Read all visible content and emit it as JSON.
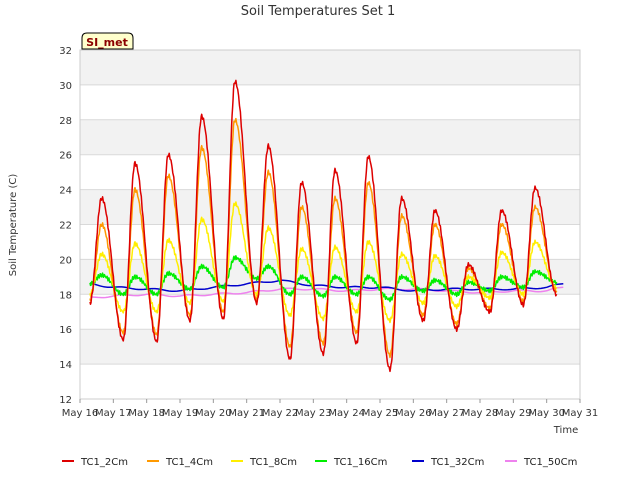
{
  "chart_data": {
    "type": "line",
    "title": "Soil Temperatures Set 1",
    "xlabel": "Time",
    "ylabel": "Soil Temperature (C)",
    "badge": "SI_met",
    "ylim": [
      12,
      32
    ],
    "yticks": [
      12,
      14,
      16,
      18,
      20,
      22,
      24,
      26,
      28,
      30,
      32
    ],
    "xlim": [
      16,
      31
    ],
    "xticks": [
      {
        "value": 16,
        "label": "May 16"
      },
      {
        "value": 17,
        "label": "May 17"
      },
      {
        "value": 18,
        "label": "May 18"
      },
      {
        "value": 19,
        "label": "May 19"
      },
      {
        "value": 20,
        "label": "May 20"
      },
      {
        "value": 21,
        "label": "May 21"
      },
      {
        "value": 22,
        "label": "May 22"
      },
      {
        "value": 23,
        "label": "May 23"
      },
      {
        "value": 24,
        "label": "May 24"
      },
      {
        "value": 25,
        "label": "May 25"
      },
      {
        "value": 26,
        "label": "May 26"
      },
      {
        "value": 27,
        "label": "May 27"
      },
      {
        "value": 28,
        "label": "May 28"
      },
      {
        "value": 29,
        "label": "May 29"
      },
      {
        "value": 30,
        "label": "May 30"
      },
      {
        "value": 31,
        "label": "May 31"
      }
    ],
    "grid": true,
    "legend_position": "bottom",
    "x_start": 16.3,
    "x_end": 30.5,
    "series": [
      {
        "name": "TC1_2Cm",
        "color": "#dd0000",
        "daily_min": [
          17.5,
          15.4,
          15.3,
          16.5,
          16.6,
          17.5,
          14.3,
          14.6,
          15.2,
          13.7,
          16.5,
          16.0,
          17.0,
          17.4,
          18.0
        ],
        "daily_max": [
          23.5,
          25.5,
          26.0,
          28.2,
          30.2,
          26.5,
          24.4,
          25.1,
          25.9,
          23.5,
          22.8,
          19.7,
          22.8,
          24.1
        ]
      },
      {
        "name": "TC1_4Cm",
        "color": "#ff9900",
        "daily_min": [
          17.7,
          15.8,
          15.7,
          16.8,
          17.0,
          17.7,
          15.0,
          15.2,
          15.8,
          14.5,
          16.8,
          16.3,
          17.2,
          17.6,
          18.2
        ],
        "daily_max": [
          22.0,
          24.0,
          24.8,
          26.4,
          28.0,
          25.0,
          23.0,
          23.5,
          24.4,
          22.5,
          22.0,
          19.5,
          22.0,
          23.0
        ]
      },
      {
        "name": "TC1_8Cm",
        "color": "#ffee00",
        "daily_min": [
          18.0,
          17.0,
          17.0,
          17.5,
          17.6,
          18.0,
          16.8,
          16.6,
          17.0,
          16.5,
          17.5,
          17.3,
          17.8,
          18.0,
          18.4
        ],
        "daily_max": [
          20.3,
          20.9,
          21.1,
          22.3,
          23.2,
          21.8,
          20.6,
          20.7,
          21.0,
          20.3,
          20.2,
          19.0,
          20.4,
          21.0
        ]
      },
      {
        "name": "TC1_16Cm",
        "color": "#00ee00",
        "daily_min": [
          18.6,
          18.0,
          18.0,
          18.3,
          18.4,
          18.9,
          18.0,
          17.9,
          18.0,
          17.7,
          18.2,
          18.0,
          18.2,
          18.4,
          18.7
        ],
        "daily_max": [
          19.1,
          19.0,
          19.2,
          19.6,
          20.1,
          19.6,
          19.0,
          19.0,
          19.0,
          19.0,
          18.8,
          18.7,
          19.0,
          19.3
        ]
      },
      {
        "name": "TC1_32Cm",
        "color": "#0000cc",
        "points": [
          [
            16.3,
            18.6
          ],
          [
            17.0,
            18.4
          ],
          [
            18.0,
            18.3
          ],
          [
            19.0,
            18.2
          ],
          [
            20.0,
            18.4
          ],
          [
            21.0,
            18.6
          ],
          [
            22.0,
            18.8
          ],
          [
            23.0,
            18.5
          ],
          [
            24.0,
            18.4
          ],
          [
            25.0,
            18.4
          ],
          [
            26.0,
            18.2
          ],
          [
            27.0,
            18.3
          ],
          [
            28.0,
            18.3
          ],
          [
            29.0,
            18.3
          ],
          [
            30.0,
            18.4
          ],
          [
            30.5,
            18.6
          ]
        ]
      },
      {
        "name": "TC1_50Cm",
        "color": "#ee82ee",
        "points": [
          [
            16.3,
            17.8
          ],
          [
            17.0,
            17.9
          ],
          [
            18.0,
            18.0
          ],
          [
            19.0,
            17.9
          ],
          [
            20.0,
            18.0
          ],
          [
            21.0,
            18.1
          ],
          [
            22.0,
            18.3
          ],
          [
            23.0,
            18.3
          ],
          [
            24.0,
            18.2
          ],
          [
            25.0,
            18.3
          ],
          [
            26.0,
            18.3
          ],
          [
            27.0,
            18.2
          ],
          [
            28.0,
            18.1
          ],
          [
            29.0,
            18.2
          ],
          [
            30.0,
            18.2
          ],
          [
            30.5,
            18.4
          ]
        ]
      }
    ]
  }
}
